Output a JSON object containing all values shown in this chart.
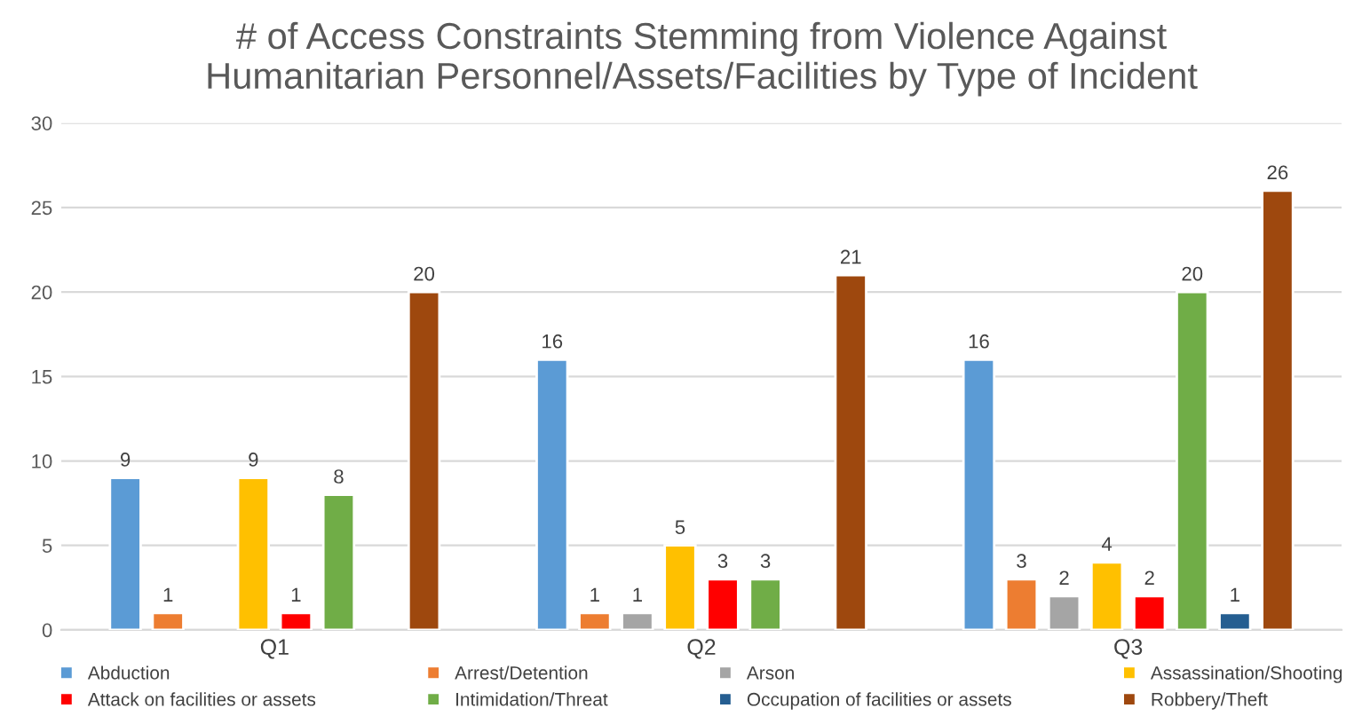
{
  "chart_data": {
    "type": "bar",
    "title": "# of Access Constraints Stemming from Violence Against\nHumanitarian Personnel/Assets/Facilities by Type of Incident",
    "categories": [
      "Q1",
      "Q2",
      "Q3"
    ],
    "series": [
      {
        "name": "Abduction",
        "color": "#5b9bd5",
        "values": [
          9,
          16,
          16
        ]
      },
      {
        "name": "Arrest/Detention",
        "color": "#ed7d31",
        "values": [
          1,
          1,
          3
        ]
      },
      {
        "name": "Arson",
        "color": "#a5a5a5",
        "values": [
          null,
          1,
          2
        ]
      },
      {
        "name": "Assassination/Shooting",
        "color": "#ffc000",
        "values": [
          9,
          5,
          4
        ]
      },
      {
        "name": "Attack on facilities or assets",
        "color": "#ff0000",
        "values": [
          1,
          3,
          2
        ]
      },
      {
        "name": "Intimidation/Threat",
        "color": "#70ad47",
        "values": [
          8,
          3,
          20
        ]
      },
      {
        "name": "Occupation of facilities or assets",
        "color": "#255e91",
        "values": [
          null,
          null,
          1
        ]
      },
      {
        "name": "Robbery/Theft",
        "color": "#9e480e",
        "values": [
          20,
          21,
          26
        ]
      }
    ],
    "ylim": [
      0,
      30
    ],
    "yticks": [
      0,
      5,
      10,
      15,
      20,
      25,
      30
    ],
    "grid": "y",
    "legend": "bottom",
    "data_labels": true
  }
}
